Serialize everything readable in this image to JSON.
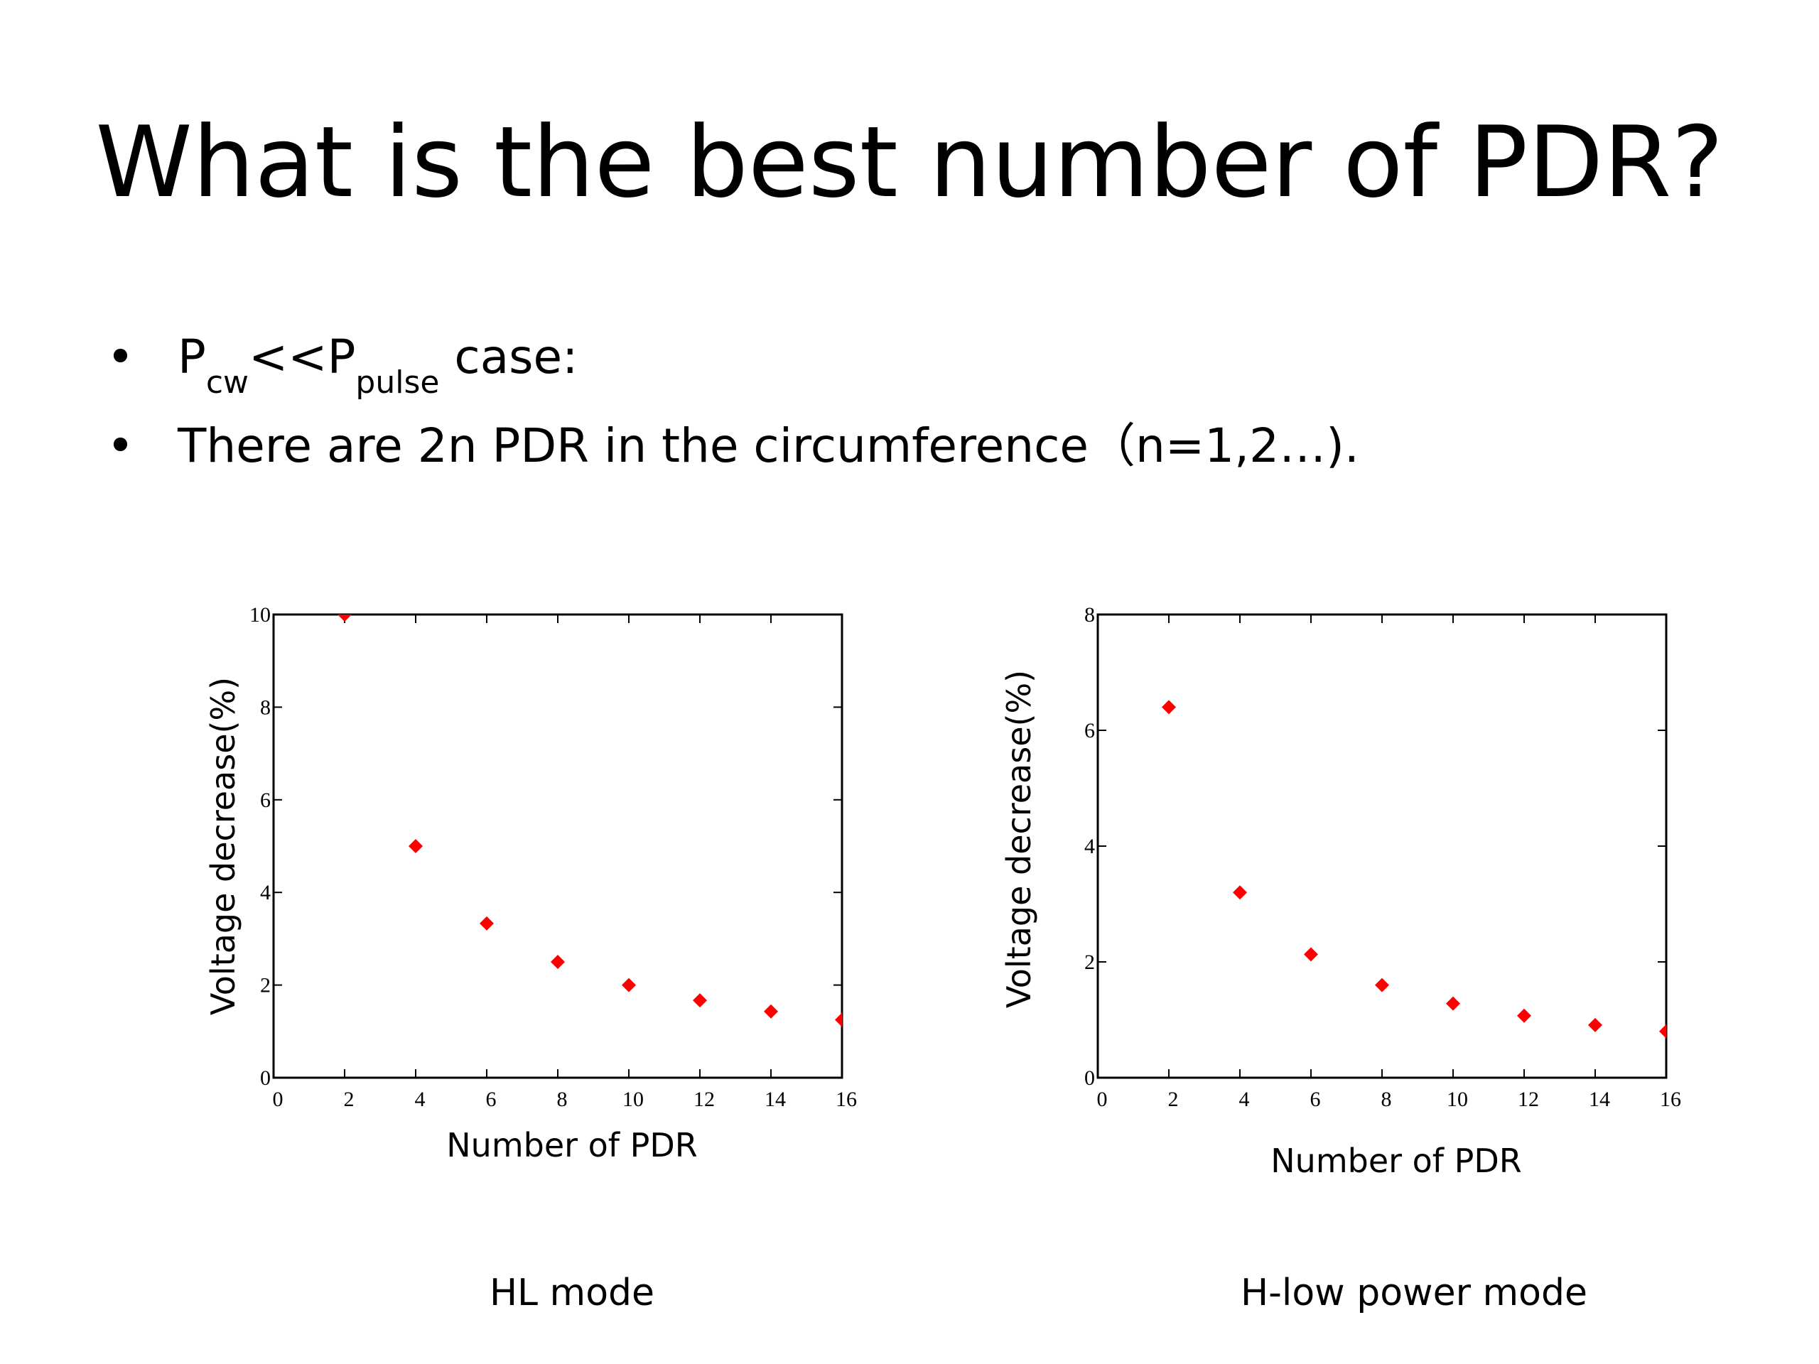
{
  "slide": {
    "title": "What is the best number of PDR?",
    "bullet_symbol": "•",
    "bullet1": {
      "p1": "P",
      "sub1": "cw",
      "mid": "<<P",
      "sub2": "pulse",
      "tail": " case:"
    },
    "bullet2": "There are 2n PDR in the circumference（n=1,2…)."
  },
  "chart_data": [
    {
      "type": "scatter",
      "caption": "HL mode",
      "xlabel": "Number of PDR",
      "ylabel": "Voltage decrease(%)",
      "xlim": [
        0,
        16
      ],
      "ylim": [
        0,
        10
      ],
      "xticks": [
        "0",
        "2",
        "4",
        "6",
        "8",
        "10",
        "12",
        "14",
        "16"
      ],
      "yticks": [
        "0",
        "2",
        "4",
        "6",
        "8",
        "10"
      ],
      "grid": false,
      "marker_color": "#ff0000",
      "x": [
        2,
        4,
        6,
        8,
        10,
        12,
        14,
        16
      ],
      "y": [
        10,
        5,
        3.33,
        2.5,
        2,
        1.67,
        1.43,
        1.25
      ]
    },
    {
      "type": "scatter",
      "caption": "H-low power mode",
      "xlabel": "Number of PDR",
      "ylabel": "Voltage decrease(%)",
      "xlim": [
        0,
        16
      ],
      "ylim": [
        0,
        8
      ],
      "xticks": [
        "0",
        "2",
        "4",
        "6",
        "8",
        "10",
        "12",
        "14",
        "16"
      ],
      "yticks": [
        "0",
        "2",
        "4",
        "6",
        "8"
      ],
      "grid": false,
      "marker_color": "#ff0000",
      "x": [
        2,
        4,
        6,
        8,
        10,
        12,
        14,
        16
      ],
      "y": [
        6.4,
        3.2,
        2.13,
        1.6,
        1.28,
        1.07,
        0.91,
        0.8
      ]
    }
  ]
}
